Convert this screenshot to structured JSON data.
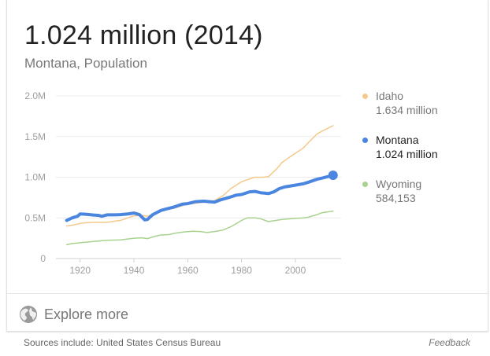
{
  "header": {
    "headline": "1.024 million (2014)",
    "subtitle": "Montana, Population"
  },
  "legend": [
    {
      "name": "Idaho",
      "value": "1.634 million",
      "color": "#f5c98a",
      "emphasis": false
    },
    {
      "name": "Montana",
      "value": "1.024 million",
      "color": "#4a86e0",
      "emphasis": true
    },
    {
      "name": "Wyoming",
      "value": "584,153",
      "color": "#a9d28f",
      "emphasis": false
    }
  ],
  "chart_data": {
    "type": "line",
    "ylim": [
      0,
      2000000
    ],
    "xlim": [
      1911,
      2017
    ],
    "y_ticks": [
      0,
      500000,
      1000000,
      1500000,
      2000000
    ],
    "y_tick_labels": [
      "0",
      "0.5M",
      "1.0M",
      "1.5M",
      "2.0M"
    ],
    "x_ticks": [
      1920,
      1940,
      1960,
      1980,
      2000
    ],
    "x_tick_labels": [
      "1920",
      "1940",
      "1960",
      "1980",
      "2000"
    ],
    "grid": true,
    "legend_position": "right",
    "series": [
      {
        "name": "Idaho",
        "color": "#f5c98a",
        "points": [
          [
            1915,
            400000
          ],
          [
            1918,
            415000
          ],
          [
            1920,
            432000
          ],
          [
            1922,
            440000
          ],
          [
            1925,
            445000
          ],
          [
            1930,
            445000
          ],
          [
            1935,
            470000
          ],
          [
            1940,
            525000
          ],
          [
            1943,
            530000
          ],
          [
            1945,
            520000
          ],
          [
            1948,
            560000
          ],
          [
            1950,
            590000
          ],
          [
            1955,
            620000
          ],
          [
            1960,
            670000
          ],
          [
            1965,
            690000
          ],
          [
            1970,
            713000
          ],
          [
            1973,
            770000
          ],
          [
            1976,
            860000
          ],
          [
            1980,
            944000
          ],
          [
            1983,
            980000
          ],
          [
            1985,
            1000000
          ],
          [
            1988,
            1000000
          ],
          [
            1990,
            1007000
          ],
          [
            1993,
            1100000
          ],
          [
            1995,
            1180000
          ],
          [
            1998,
            1250000
          ],
          [
            2000,
            1294000
          ],
          [
            2003,
            1360000
          ],
          [
            2005,
            1430000
          ],
          [
            2008,
            1530000
          ],
          [
            2010,
            1568000
          ],
          [
            2014,
            1634000
          ]
        ]
      },
      {
        "name": "Montana",
        "color": "#4a86e0",
        "points": [
          [
            1915,
            470000
          ],
          [
            1917,
            500000
          ],
          [
            1919,
            520000
          ],
          [
            1920,
            549000
          ],
          [
            1922,
            545000
          ],
          [
            1925,
            535000
          ],
          [
            1927,
            530000
          ],
          [
            1928,
            520000
          ],
          [
            1930,
            537000
          ],
          [
            1933,
            537000
          ],
          [
            1935,
            540000
          ],
          [
            1938,
            550000
          ],
          [
            1940,
            559000
          ],
          [
            1942,
            540000
          ],
          [
            1944,
            475000
          ],
          [
            1945,
            480000
          ],
          [
            1947,
            540000
          ],
          [
            1950,
            591000
          ],
          [
            1952,
            610000
          ],
          [
            1955,
            635000
          ],
          [
            1958,
            670000
          ],
          [
            1960,
            675000
          ],
          [
            1963,
            700000
          ],
          [
            1966,
            705000
          ],
          [
            1968,
            700000
          ],
          [
            1970,
            694000
          ],
          [
            1972,
            720000
          ],
          [
            1975,
            748000
          ],
          [
            1978,
            780000
          ],
          [
            1980,
            787000
          ],
          [
            1983,
            820000
          ],
          [
            1985,
            825000
          ],
          [
            1987,
            810000
          ],
          [
            1990,
            799000
          ],
          [
            1992,
            820000
          ],
          [
            1994,
            860000
          ],
          [
            1996,
            880000
          ],
          [
            2000,
            902000
          ],
          [
            2003,
            920000
          ],
          [
            2005,
            940000
          ],
          [
            2008,
            975000
          ],
          [
            2010,
            989000
          ],
          [
            2014,
            1024000
          ]
        ]
      },
      {
        "name": "Wyoming",
        "color": "#a9d28f",
        "points": [
          [
            1915,
            170000
          ],
          [
            1917,
            185000
          ],
          [
            1920,
            194000
          ],
          [
            1925,
            210000
          ],
          [
            1930,
            225000
          ],
          [
            1935,
            230000
          ],
          [
            1940,
            250000
          ],
          [
            1943,
            255000
          ],
          [
            1945,
            245000
          ],
          [
            1948,
            275000
          ],
          [
            1950,
            290000
          ],
          [
            1953,
            295000
          ],
          [
            1955,
            310000
          ],
          [
            1958,
            325000
          ],
          [
            1960,
            330000
          ],
          [
            1962,
            335000
          ],
          [
            1965,
            330000
          ],
          [
            1967,
            320000
          ],
          [
            1970,
            332000
          ],
          [
            1973,
            350000
          ],
          [
            1976,
            390000
          ],
          [
            1980,
            469000
          ],
          [
            1982,
            500000
          ],
          [
            1985,
            500000
          ],
          [
            1987,
            490000
          ],
          [
            1990,
            454000
          ],
          [
            1992,
            465000
          ],
          [
            1995,
            480000
          ],
          [
            2000,
            494000
          ],
          [
            2003,
            500000
          ],
          [
            2005,
            510000
          ],
          [
            2008,
            540000
          ],
          [
            2010,
            564000
          ],
          [
            2014,
            584000
          ]
        ]
      }
    ],
    "highlight": {
      "series": "Montana",
      "x": 2014,
      "y": 1024000
    }
  },
  "footer": {
    "explore_label": "Explore more",
    "explore_icon": "globe-icon",
    "sources_text": "Sources include: United States Census Bureau",
    "feedback_label": "Feedback"
  }
}
